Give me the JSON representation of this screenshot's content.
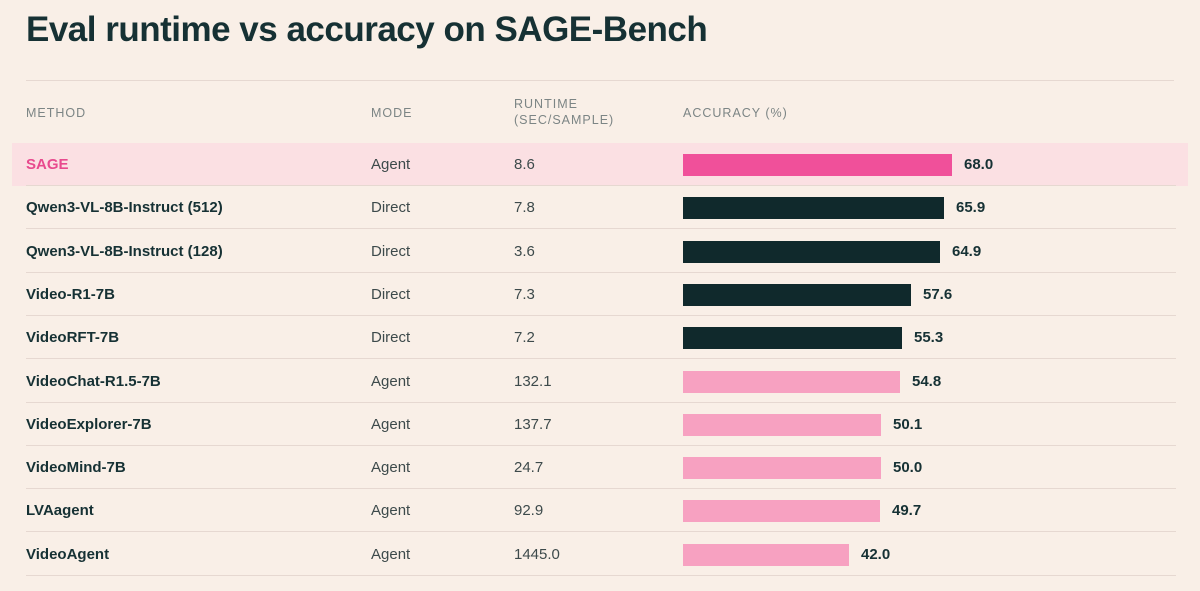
{
  "title": "Eval runtime vs accuracy on SAGE-Bench",
  "headers": {
    "method": "METHOD",
    "mode": "MODE",
    "runtime": "RUNTIME (SEC/SAMPLE)",
    "accuracy": "ACCURACY (%)"
  },
  "colors": {
    "background": "#f9efe7",
    "highlight_row": "#fbe0e3",
    "highlight_bar": "#f0509a",
    "direct_bar": "#10292c",
    "agent_bar": "#f7a1c1",
    "text_dark": "#163134",
    "highlight_text": "#e84a8e"
  },
  "chart_data": {
    "type": "bar",
    "orientation": "horizontal",
    "title": "Eval runtime vs accuracy on SAGE-Bench",
    "xlabel": "ACCURACY (%)",
    "ylabel": "METHOD",
    "xlim": [
      0,
      68
    ],
    "categories": [
      "SAGE",
      "Qwen3-VL-8B-Instruct (512)",
      "Qwen3-VL-8B-Instruct (128)",
      "Video-R1-7B",
      "VideoRFT-7B",
      "VideoChat-R1.5-7B",
      "VideoExplorer-7B",
      "VideoMind-7B",
      "LVAagent",
      "VideoAgent"
    ],
    "values": [
      68.0,
      65.9,
      64.9,
      57.6,
      55.3,
      54.8,
      50.1,
      50.0,
      49.7,
      42.0
    ],
    "rows": [
      {
        "method": "SAGE",
        "mode": "Agent",
        "runtime": "8.6",
        "accuracy": 68.0,
        "accuracy_label": "68.0",
        "highlight": true
      },
      {
        "method": "Qwen3-VL-8B-Instruct (512)",
        "mode": "Direct",
        "runtime": "7.8",
        "accuracy": 65.9,
        "accuracy_label": "65.9",
        "highlight": false
      },
      {
        "method": "Qwen3-VL-8B-Instruct (128)",
        "mode": "Direct",
        "runtime": "3.6",
        "accuracy": 64.9,
        "accuracy_label": "64.9",
        "highlight": false
      },
      {
        "method": "Video-R1-7B",
        "mode": "Direct",
        "runtime": "7.3",
        "accuracy": 57.6,
        "accuracy_label": "57.6",
        "highlight": false
      },
      {
        "method": "VideoRFT-7B",
        "mode": "Direct",
        "runtime": "7.2",
        "accuracy": 55.3,
        "accuracy_label": "55.3",
        "highlight": false
      },
      {
        "method": "VideoChat-R1.5-7B",
        "mode": "Agent",
        "runtime": "132.1",
        "accuracy": 54.8,
        "accuracy_label": "54.8",
        "highlight": false
      },
      {
        "method": "VideoExplorer-7B",
        "mode": "Agent",
        "runtime": "137.7",
        "accuracy": 50.1,
        "accuracy_label": "50.1",
        "highlight": false
      },
      {
        "method": "VideoMind-7B",
        "mode": "Agent",
        "runtime": "24.7",
        "accuracy": 50.0,
        "accuracy_label": "50.0",
        "highlight": false
      },
      {
        "method": "LVAagent",
        "mode": "Agent",
        "runtime": "92.9",
        "accuracy": 49.7,
        "accuracy_label": "49.7",
        "highlight": false
      },
      {
        "method": "VideoAgent",
        "mode": "Agent",
        "runtime": "1445.0",
        "accuracy": 42.0,
        "accuracy_label": "42.0",
        "highlight": false
      }
    ]
  }
}
